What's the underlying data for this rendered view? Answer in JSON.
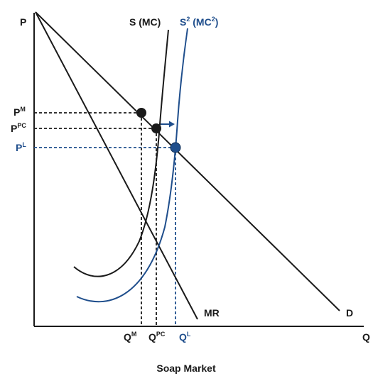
{
  "axes": {
    "y_label": "P",
    "x_label": "Q"
  },
  "curves": {
    "supply": {
      "label": "S (MC)"
    },
    "supply2": {
      "label": "S",
      "label_sup": "2",
      "label_rest": " (MC",
      "label_sup2": "2",
      "label_end": ")"
    },
    "demand": {
      "label": "D"
    },
    "marginal_revenue": {
      "label": "MR"
    }
  },
  "price_levels": [
    {
      "base": "P",
      "sup": "M"
    },
    {
      "base": "P",
      "sup": "PC"
    },
    {
      "base": "P",
      "sup": "L"
    }
  ],
  "quantity_levels": [
    {
      "base": "Q",
      "sup": "M"
    },
    {
      "base": "Q",
      "sup": "PC"
    },
    {
      "base": "Q",
      "sup": "L"
    }
  ],
  "caption": "Soap Market",
  "colors": {
    "black": "#1a1a1a",
    "blue": "#1f4e8c"
  }
}
